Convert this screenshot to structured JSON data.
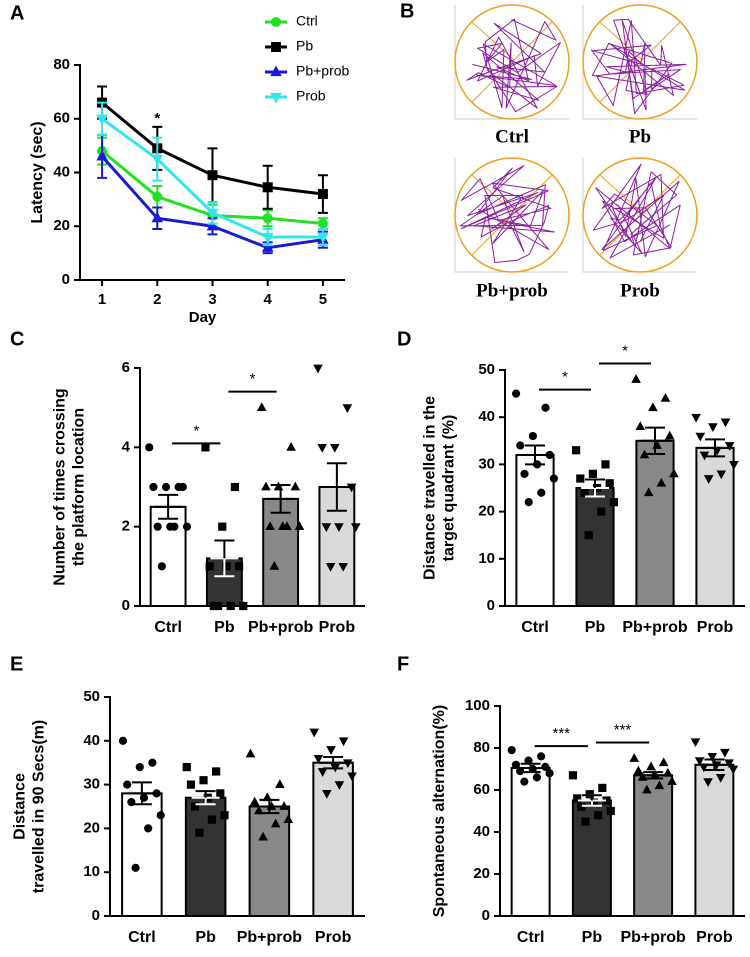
{
  "chart_data": [
    {
      "type": "line",
      "panel_label": "A",
      "xlabel": "Day",
      "ylabel": [
        "Latency (sec)"
      ],
      "x": [
        1,
        2,
        3,
        4,
        5
      ],
      "xlim": [
        0.6,
        5.4
      ],
      "xticks": [
        1,
        2,
        3,
        4,
        5
      ],
      "ylim": [
        0,
        80
      ],
      "yticks": [
        0,
        20,
        40,
        60,
        80
      ],
      "series": [
        {
          "name": "Ctrl",
          "color": "#22e022",
          "marker": "circle",
          "values": [
            48,
            31,
            24,
            23,
            21
          ],
          "errors": [
            5,
            4,
            4,
            3,
            2
          ]
        },
        {
          "name": "Pb",
          "color": "#000000",
          "marker": "square",
          "values": [
            66,
            49,
            39,
            34.5,
            32
          ],
          "errors": [
            6,
            8,
            10,
            8,
            7
          ]
        },
        {
          "name": "Pb+prob",
          "color": "#1a1ad6",
          "marker": "triangle",
          "values": [
            46,
            23,
            20,
            12,
            15
          ],
          "errors": [
            8,
            4,
            3,
            2,
            3
          ]
        },
        {
          "name": "Prob",
          "color": "#33e5ee",
          "marker": "triangle-down",
          "values": [
            60,
            45,
            25,
            16,
            16
          ],
          "errors": [
            6,
            8,
            4,
            3,
            3
          ]
        }
      ],
      "annotations": [
        {
          "x": 2,
          "label": "*"
        }
      ]
    },
    {
      "type": "bar",
      "panel_label": "C",
      "ylabel": [
        "Number of times crossing",
        "the platform location"
      ],
      "categories": [
        "Ctrl",
        "Pb",
        "Pb+prob",
        "Prob"
      ],
      "colors": [
        "#ffffff",
        "#333333",
        "#888888",
        "#d9d9d9"
      ],
      "markers": [
        "circle",
        "square",
        "triangle",
        "triangle-down"
      ],
      "values": [
        2.5,
        1.2,
        2.7,
        3.0
      ],
      "errors": [
        0.3,
        0.45,
        0.35,
        0.6
      ],
      "points": [
        [
          4,
          3,
          3,
          3,
          3,
          2,
          2,
          2,
          2,
          1
        ],
        [
          4,
          3,
          2,
          1,
          1,
          1,
          0,
          0,
          0,
          0
        ],
        [
          5,
          4,
          3,
          3,
          3,
          2,
          2,
          2,
          2,
          1
        ],
        [
          6,
          5,
          4,
          4,
          3,
          2,
          2,
          2,
          1,
          1
        ]
      ],
      "ylim": [
        0,
        6
      ],
      "yticks": [
        0,
        2,
        4,
        6
      ],
      "brackets": [
        {
          "groups": [
            0,
            1
          ],
          "label": "*"
        },
        {
          "groups": [
            1,
            2
          ],
          "label": "*"
        }
      ]
    },
    {
      "type": "bar",
      "panel_label": "D",
      "ylabel": [
        "Distance travelled in the",
        "target quadrant (%)"
      ],
      "categories": [
        "Ctrl",
        "Pb",
        "Pb+prob",
        "Prob"
      ],
      "colors": [
        "#ffffff",
        "#333333",
        "#888888",
        "#d9d9d9"
      ],
      "markers": [
        "circle",
        "square",
        "triangle",
        "triangle-down"
      ],
      "values": [
        32,
        25,
        35,
        33.5
      ],
      "errors": [
        2,
        1.8,
        2.8,
        1.8
      ],
      "points": [
        [
          45,
          42,
          36,
          34,
          32,
          30,
          28,
          27,
          24,
          22
        ],
        [
          33,
          30,
          28,
          27,
          26,
          25,
          24,
          22,
          20,
          15
        ],
        [
          48,
          44,
          42,
          38,
          36,
          34,
          32,
          28,
          26,
          24
        ],
        [
          40,
          39,
          38,
          36,
          34,
          33,
          32,
          30,
          28,
          27
        ]
      ],
      "ylim": [
        0,
        50
      ],
      "yticks": [
        0,
        10,
        20,
        30,
        40,
        50
      ],
      "brackets": [
        {
          "groups": [
            0,
            1
          ],
          "label": "*"
        },
        {
          "groups": [
            1,
            2
          ],
          "label": "*"
        }
      ]
    },
    {
      "type": "bar",
      "panel_label": "E",
      "ylabel": [
        "Distance",
        "travelled in 90 Secs(m)"
      ],
      "categories": [
        "Ctrl",
        "Pb",
        "Pb+prob",
        "Prob"
      ],
      "colors": [
        "#ffffff",
        "#333333",
        "#888888",
        "#d9d9d9"
      ],
      "markers": [
        "circle",
        "square",
        "triangle",
        "triangle-down"
      ],
      "values": [
        28,
        27,
        25,
        35
      ],
      "errors": [
        2.5,
        1.5,
        1.5,
        1.3
      ],
      "points": [
        [
          40,
          35,
          34,
          30,
          28,
          27,
          26,
          23,
          20,
          11
        ],
        [
          34,
          33,
          31,
          30,
          28,
          27,
          25,
          23,
          22,
          19
        ],
        [
          37,
          30,
          27,
          26,
          25,
          25,
          24,
          22,
          21,
          18
        ],
        [
          42,
          40,
          38,
          36,
          35,
          34,
          33,
          32,
          30,
          28
        ]
      ],
      "ylim": [
        0,
        50
      ],
      "yticks": [
        0,
        10,
        20,
        30,
        40,
        50
      ],
      "brackets": []
    },
    {
      "type": "bar",
      "panel_label": "F",
      "ylabel": [
        "Spontaneous alternation(%)"
      ],
      "categories": [
        "Ctrl",
        "Pb",
        "Pb+prob",
        "Prob"
      ],
      "colors": [
        "#ffffff",
        "#333333",
        "#888888",
        "#d9d9d9"
      ],
      "markers": [
        "circle",
        "square",
        "triangle",
        "triangle-down"
      ],
      "values": [
        70.5,
        55,
        67,
        72
      ],
      "errors": [
        2,
        2.5,
        1.5,
        2.5
      ],
      "points": [
        [
          79,
          76,
          74,
          72,
          71,
          70,
          69,
          68,
          66,
          64
        ],
        [
          67,
          61,
          58,
          56,
          55,
          54,
          52,
          50,
          48,
          45
        ],
        [
          75,
          73,
          71,
          69,
          68,
          67,
          66,
          64,
          62,
          60
        ],
        [
          83,
          78,
          76,
          74,
          73,
          72,
          71,
          70,
          66,
          64
        ]
      ],
      "ylim": [
        0,
        100
      ],
      "yticks": [
        0,
        20,
        40,
        60,
        80,
        100
      ],
      "brackets": [
        {
          "groups": [
            0,
            1
          ],
          "label": "***"
        },
        {
          "groups": [
            1,
            2
          ],
          "label": "***"
        }
      ]
    }
  ],
  "track_panel": {
    "panel_label": "B",
    "captions": [
      "Ctrl",
      "Pb",
      "Pb+prob",
      "Prob"
    ]
  }
}
